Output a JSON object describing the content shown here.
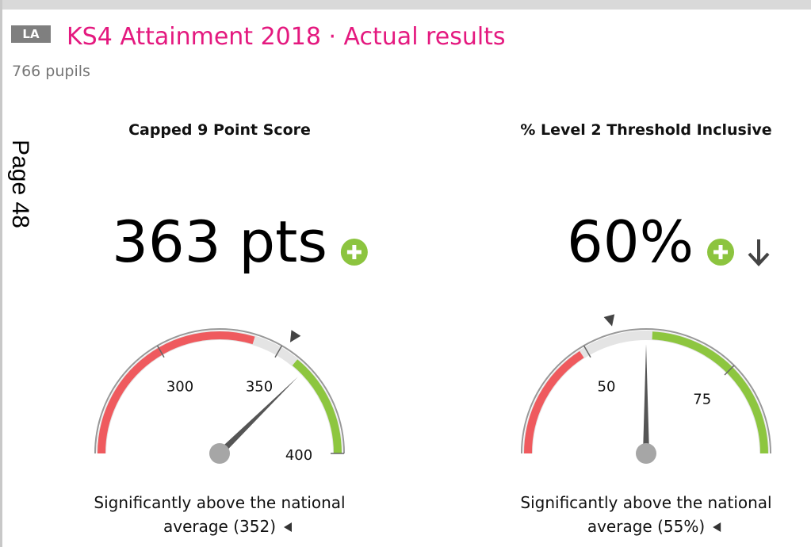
{
  "header": {
    "badge": "LA",
    "title": "KS4 Attainment 2018 · Actual results",
    "subtitle": "766 pupils"
  },
  "page_label": "Page 48",
  "panels": [
    {
      "title": "Capped 9 Point Score",
      "value": 363,
      "value_label": "363 pts",
      "range": [
        250,
        400
      ],
      "ticks": [
        300,
        350,
        400
      ],
      "red_band": [
        250,
        339
      ],
      "green_band": [
        358,
        400
      ],
      "average": 352,
      "comparison": "Significantly above the national",
      "average_label": "average (352)"
    },
    {
      "title": "% Level 2 Threshold Inclusive",
      "value": 60,
      "value_label": "60%",
      "range": [
        30,
        90
      ],
      "ticks": [
        50,
        75
      ],
      "red_band": [
        30,
        49
      ],
      "green_band": [
        61,
        90
      ],
      "average": 55,
      "comparison": "Significantly above the national",
      "average_label": "average (55%)"
    }
  ]
}
